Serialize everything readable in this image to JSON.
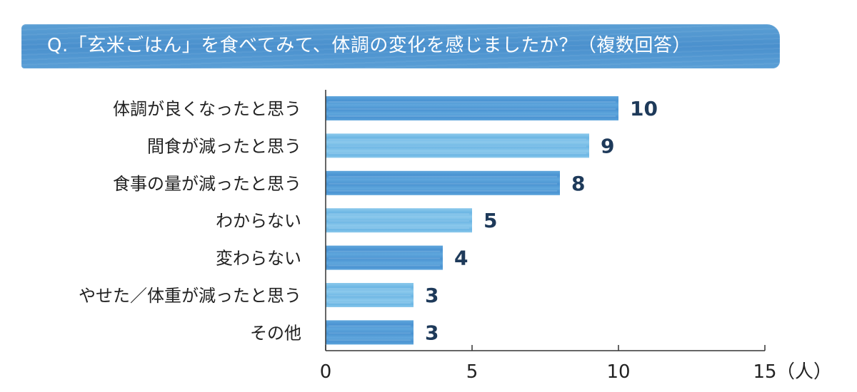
{
  "chart_data": {
    "type": "bar",
    "orientation": "horizontal",
    "title": "Q.「玄米ごはん」を食べてみて、体調の変化を感じましたか？（複数回答）",
    "categories": [
      "体調が良くなったと思う",
      "間食が減ったと思う",
      "食事の量が減ったと思う",
      "わからない",
      "変わらない",
      "やせた／体重が減ったと思う",
      "その他"
    ],
    "values": [
      10,
      9,
      8,
      5,
      4,
      3,
      3
    ],
    "value_labels": [
      "10",
      "9",
      "8",
      "5",
      "4",
      "3",
      "3"
    ],
    "xlim": [
      0,
      15
    ],
    "xticks": [
      0,
      5,
      10,
      15
    ],
    "xtick_labels": [
      "0",
      "5",
      "10",
      "15"
    ],
    "unit_label": "（人）",
    "grid": false,
    "legend": "none",
    "colors": {
      "bar_dark": "#4a93d2",
      "bar_light": "#6cb6e4",
      "banner": "#4f95d0",
      "value_text": "#1e3a5a",
      "axis": "#333333"
    }
  }
}
